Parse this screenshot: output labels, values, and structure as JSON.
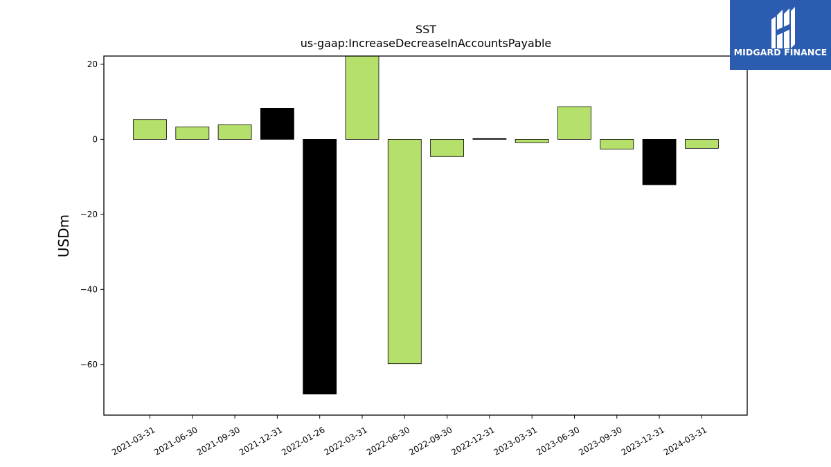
{
  "chart_data": {
    "type": "bar",
    "title": "SST",
    "subtitle": "us-gaap:IncreaseDecreaseInAccountsPayable",
    "xlabel": "",
    "ylabel": "USDm",
    "ylim": [
      -73.5,
      22.2
    ],
    "yticks": [
      20,
      0,
      -20,
      -40,
      -60
    ],
    "ytick_labels": [
      "20",
      "0",
      "−20",
      "−40",
      "−60"
    ],
    "grid": false,
    "categories": [
      "2021-03-31",
      "2021-06-30",
      "2021-09-30",
      "2021-12-31",
      "2022-01-26",
      "2022-03-31",
      "2022-06-30",
      "2022-09-30",
      "2022-12-31",
      "2023-03-31",
      "2023-06-30",
      "2023-09-30",
      "2023-12-31",
      "2024-03-31"
    ],
    "values": [
      5.3,
      3.3,
      3.9,
      8.3,
      -67.9,
      22.2,
      -59.8,
      -4.6,
      0.2,
      -0.9,
      8.7,
      -2.6,
      -12.1,
      -2.4
    ],
    "bar_colors": [
      "#b5e06b",
      "#b5e06b",
      "#b5e06b",
      "#000000",
      "#000000",
      "#b5e06b",
      "#b5e06b",
      "#b5e06b",
      "#000000",
      "#b5e06b",
      "#b5e06b",
      "#b5e06b",
      "#000000",
      "#b5e06b"
    ]
  },
  "logo": {
    "text": "MIDGARD FINANCE",
    "background": "#2b5cb0",
    "icon": "midgard-logo-icon"
  }
}
